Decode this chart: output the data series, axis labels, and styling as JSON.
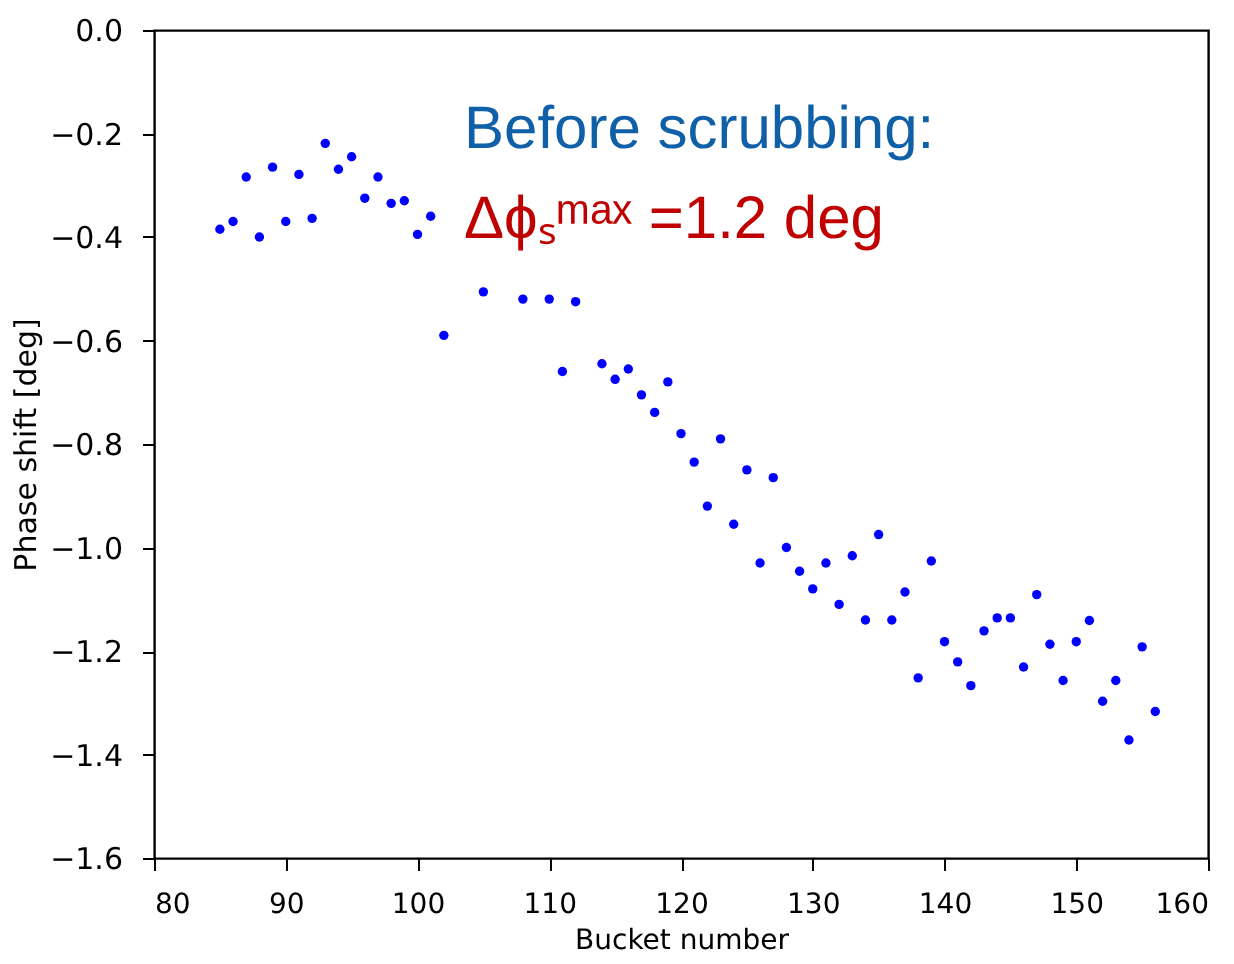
{
  "chart_data": {
    "type": "scatter",
    "xlabel": "Bucket number",
    "ylabel": "Phase shift [deg]",
    "xlim": [
      80,
      160
    ],
    "xticks": [
      80,
      90,
      100,
      110,
      120,
      130,
      140,
      150,
      160
    ],
    "ylim": [
      -1.6,
      0.0
    ],
    "yticks": [
      {
        "value": -1.6,
        "label": "−1.6"
      },
      {
        "value": -1.4,
        "label": "−1.4"
      },
      {
        "value": -1.2,
        "label": "−1.2"
      },
      {
        "value": -1.0,
        "label": "−1.0"
      },
      {
        "value": -0.8,
        "label": "−0.8"
      },
      {
        "value": -0.6,
        "label": "−0.6"
      },
      {
        "value": -0.4,
        "label": "−0.4"
      },
      {
        "value": -0.2,
        "label": "−0.2"
      },
      {
        "value": 0.0,
        "label": "0.0"
      }
    ],
    "grid": false,
    "marker": "circle",
    "x": [
      85,
      86,
      87,
      88,
      89,
      90,
      91,
      92,
      93,
      94,
      95,
      96,
      97,
      98,
      99,
      100,
      101,
      102,
      105,
      108,
      110,
      112,
      111,
      114,
      115,
      116,
      117,
      118,
      119,
      120,
      121,
      122,
      123,
      124,
      125,
      126,
      127,
      128,
      129,
      130,
      131,
      132,
      133,
      134,
      135,
      136,
      137,
      138,
      139,
      140,
      141,
      142,
      143,
      144,
      145,
      146,
      147,
      148,
      149,
      150,
      151,
      152,
      153,
      154,
      155,
      156
    ],
    "series": [
      {
        "color": "#0000ff",
        "values": [
          -0.385,
          -0.37,
          -0.284,
          -0.4,
          -0.265,
          -0.37,
          -0.279,
          -0.364,
          -0.219,
          -0.269,
          -0.245,
          -0.325,
          -0.284,
          -0.335,
          -0.33,
          -0.395,
          -0.36,
          -0.59,
          -0.506,
          -0.52,
          -0.52,
          -0.525,
          -0.66,
          -0.645,
          -0.675,
          -0.655,
          -0.705,
          -0.739,
          -0.68,
          -0.78,
          -0.835,
          -0.92,
          -0.79,
          -0.955,
          -0.85,
          -1.03,
          -0.865,
          -1.0,
          -1.046,
          -1.08,
          -1.03,
          -1.11,
          -1.016,
          -1.14,
          -0.975,
          -1.14,
          -1.086,
          -1.252,
          -1.026,
          -1.182,
          -1.221,
          -1.267,
          -1.161,
          -1.136,
          -1.136,
          -1.231,
          -1.091,
          -1.187,
          -1.257,
          -1.182,
          -1.141,
          -1.297,
          -1.257,
          -1.372,
          -1.192,
          -1.317
        ]
      }
    ],
    "annotations": [
      "Before scrubbing:",
      "Δϕₛᵐᵃˣ =1.2 deg"
    ]
  }
}
